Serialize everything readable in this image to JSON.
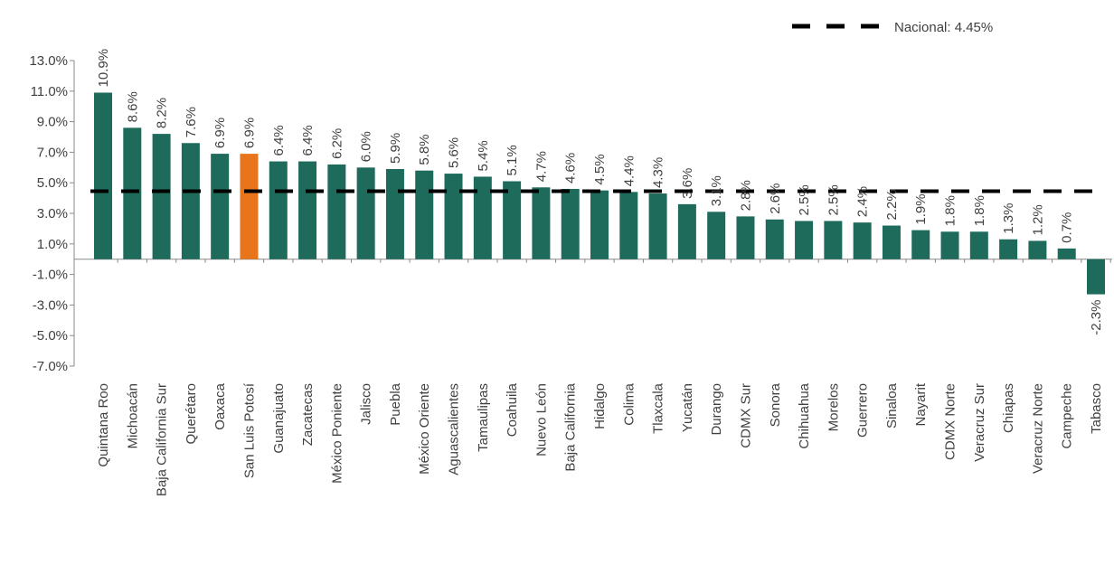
{
  "chart_data": {
    "type": "bar",
    "title": "",
    "xlabel": "",
    "ylabel": "",
    "ylim": [
      -7.0,
      13.0
    ],
    "yticks": [
      "13.0%",
      "11.0%",
      "9.0%",
      "7.0%",
      "5.0%",
      "3.0%",
      "1.0%",
      "-1.0%",
      "-3.0%",
      "-5.0%",
      "-7.0%"
    ],
    "ytick_values": [
      13,
      11,
      9,
      7,
      5,
      3,
      1,
      -1,
      -3,
      -5,
      -7
    ],
    "grid": false,
    "legend_position": "top-right",
    "categories": [
      "Quintana Roo",
      "Michoacán",
      "Baja California Sur",
      "Querétaro",
      "Oaxaca",
      "San Luis Potosí",
      "Guanajuato",
      "Zacatecas",
      "México Poniente",
      "Jalisco",
      "Puebla",
      "México Oriente",
      "Aguascalientes",
      "Tamaulipas",
      "Coahuila",
      "Nuevo León",
      "Baja California",
      "Hidalgo",
      "Colima",
      "Tlaxcala",
      "Yucatán",
      "Durango",
      "CDMX Sur",
      "Sonora",
      "Chihuahua",
      "Morelos",
      "Guerrero",
      "Sinaloa",
      "Nayarit",
      "CDMX Norte",
      "Veracruz Sur",
      "Chiapas",
      "Veracruz Norte",
      "Campeche",
      "Tabasco"
    ],
    "values": [
      10.9,
      8.6,
      8.2,
      7.6,
      6.9,
      6.9,
      6.4,
      6.4,
      6.2,
      6.0,
      5.9,
      5.8,
      5.6,
      5.4,
      5.1,
      4.7,
      4.6,
      4.5,
      4.4,
      4.3,
      3.6,
      3.1,
      2.8,
      2.6,
      2.5,
      2.5,
      2.4,
      2.2,
      1.9,
      1.8,
      1.8,
      1.3,
      1.2,
      0.7,
      -2.3
    ],
    "data_labels": [
      "10.9%",
      "8.6%",
      "8.2%",
      "7.6%",
      "6.9%",
      "6.9%",
      "6.4%",
      "6.4%",
      "6.2%",
      "6.0%",
      "5.9%",
      "5.8%",
      "5.6%",
      "5.4%",
      "5.1%",
      "4.7%",
      "4.6%",
      "4.5%",
      "4.4%",
      "4.3%",
      "3.6%",
      "3.1%",
      "2.8%",
      "2.6%",
      "2.5%",
      "2.5%",
      "2.4%",
      "2.2%",
      "1.9%",
      "1.8%",
      "1.8%",
      "1.3%",
      "1.2%",
      "0.7%",
      "-2.3%"
    ],
    "highlight_category": "San Luis Potosí",
    "reference_line": {
      "name": "Nacional: 4.45%",
      "value": 4.45,
      "style": "dashed",
      "color": "#000000"
    },
    "colors": {
      "bar": "#1e6b5c",
      "highlight": "#e8741c",
      "axis": "#888888"
    }
  }
}
